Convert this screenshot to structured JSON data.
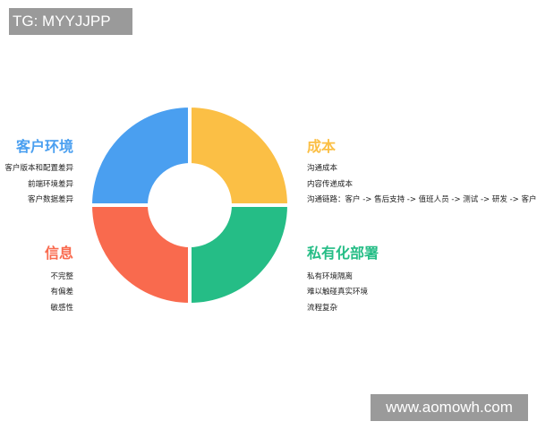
{
  "watermarks": {
    "top_left": "TG: MYYJJPP",
    "bottom_right": "www.aomowh.com"
  },
  "colors": {
    "customer_env": "#4a9ff0",
    "cost": "#fbbf45",
    "info": "#f96a4e",
    "private_deploy": "#25bd86"
  },
  "sections": {
    "customer_env": {
      "title": "客户环境",
      "items": [
        "客户版本和配置差异",
        "前端环境差异",
        "客户数据差异"
      ]
    },
    "info": {
      "title": "信息",
      "items": [
        "不完整",
        "有偏差",
        "敏感性"
      ]
    },
    "cost": {
      "title": "成本",
      "items": [
        "沟通成本",
        "内容传递成本",
        "沟通链路：客户 -> 售后支持 -> 值班人员 -> 测试 -> 研发 -> 客户"
      ]
    },
    "private_deploy": {
      "title": "私有化部署",
      "items": [
        "私有环境隔离",
        "难以触碰真实环境",
        "流程复杂"
      ]
    }
  }
}
